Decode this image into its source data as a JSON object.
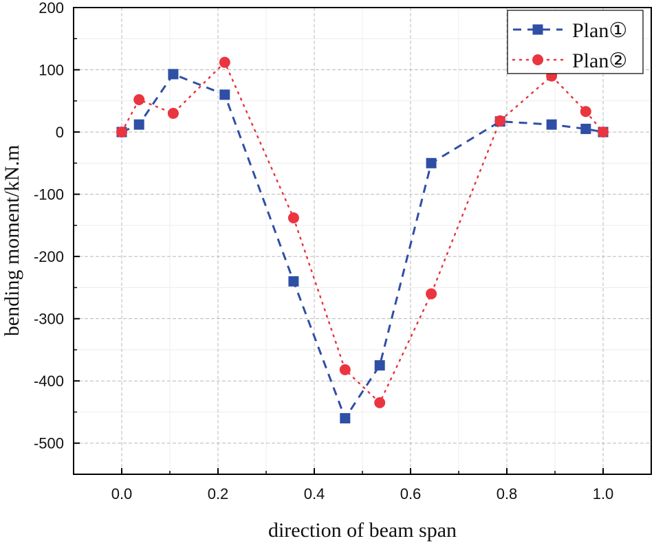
{
  "chart_data": {
    "type": "line",
    "title": "",
    "xlabel": "direction of beam span",
    "ylabel": "bending moment/kN.m",
    "xlim": [
      -0.1,
      1.1
    ],
    "ylim": [
      -550,
      200
    ],
    "x_ticks": [
      0.0,
      0.2,
      0.4,
      0.6,
      0.8,
      1.0
    ],
    "x_tick_labels": [
      "0.0",
      "0.2",
      "0.4",
      "0.6",
      "0.8",
      "1.0"
    ],
    "y_ticks": [
      200,
      100,
      0,
      -100,
      -200,
      -300,
      -400,
      -500
    ],
    "y_tick_labels": [
      "200",
      "100",
      "0",
      "-100",
      "-200",
      "-300",
      "-400",
      "-500"
    ],
    "grid": true,
    "legend_position": "top-right",
    "series": [
      {
        "name": "Plan①",
        "color": "#2f4fa6",
        "marker": "square",
        "line_style": "dashed",
        "x": [
          0.0,
          0.036,
          0.107,
          0.214,
          0.357,
          0.464,
          0.536,
          0.643,
          0.786,
          0.893,
          0.964,
          1.0
        ],
        "y": [
          0,
          12,
          93,
          60,
          -240,
          -460,
          -375,
          -50,
          17,
          12,
          5,
          0
        ]
      },
      {
        "name": "Plan②",
        "color": "#ea3540",
        "marker": "circle",
        "line_style": "dotted",
        "x": [
          0.0,
          0.036,
          0.107,
          0.214,
          0.357,
          0.464,
          0.536,
          0.643,
          0.786,
          0.893,
          0.964,
          1.0
        ],
        "y": [
          0,
          52,
          30,
          112,
          -138,
          -382,
          -435,
          -260,
          18,
          90,
          33,
          0
        ]
      }
    ]
  }
}
